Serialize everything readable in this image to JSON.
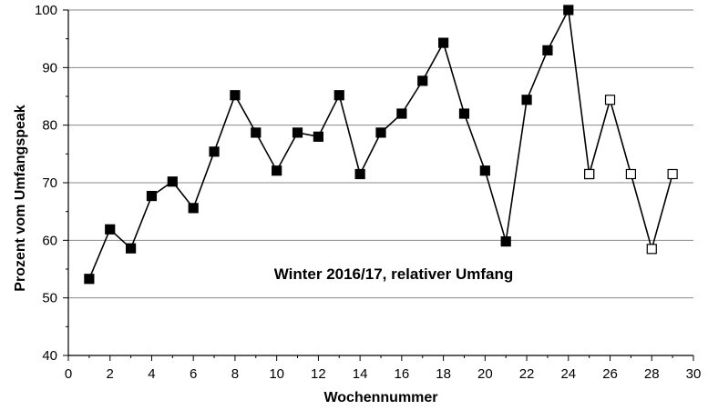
{
  "chart_data": {
    "type": "line",
    "title": "",
    "annotation": "Winter 2016/17,  relativer Umfang",
    "xlabel": "Wochennummer",
    "ylabel": "Prozent vom Umfangspeak",
    "xlim": [
      0,
      30
    ],
    "ylim": [
      40,
      100
    ],
    "xticks": [
      0,
      2,
      4,
      6,
      8,
      10,
      12,
      14,
      16,
      18,
      20,
      22,
      24,
      26,
      28,
      30
    ],
    "yticks": [
      40,
      50,
      60,
      70,
      80,
      90,
      100
    ],
    "grid": "horizontal",
    "legend": "none",
    "series": [
      {
        "marker": "filled-square",
        "color": "#000000",
        "points": [
          [
            1,
            53.3
          ],
          [
            2,
            61.9
          ],
          [
            3,
            58.6
          ],
          [
            4,
            67.7
          ],
          [
            5,
            70.2
          ],
          [
            6,
            65.6
          ],
          [
            7,
            75.4
          ],
          [
            8,
            85.2
          ],
          [
            9,
            78.7
          ],
          [
            10,
            72.1
          ],
          [
            11,
            78.7
          ],
          [
            12,
            78.0
          ],
          [
            13,
            85.2
          ],
          [
            14,
            71.5
          ],
          [
            15,
            78.7
          ],
          [
            16,
            82.0
          ],
          [
            17,
            87.7
          ],
          [
            18,
            94.3
          ],
          [
            19,
            82.0
          ],
          [
            20,
            72.1
          ],
          [
            21,
            59.8
          ],
          [
            22,
            84.4
          ],
          [
            23,
            93.0
          ],
          [
            24,
            100.0
          ],
          [
            25,
            71.5
          ]
        ]
      },
      {
        "marker": "open-square",
        "color": "#000000",
        "points": [
          [
            25,
            71.5
          ],
          [
            26,
            84.4
          ],
          [
            27,
            71.5
          ],
          [
            28,
            58.5
          ],
          [
            29,
            71.5
          ]
        ]
      }
    ]
  }
}
